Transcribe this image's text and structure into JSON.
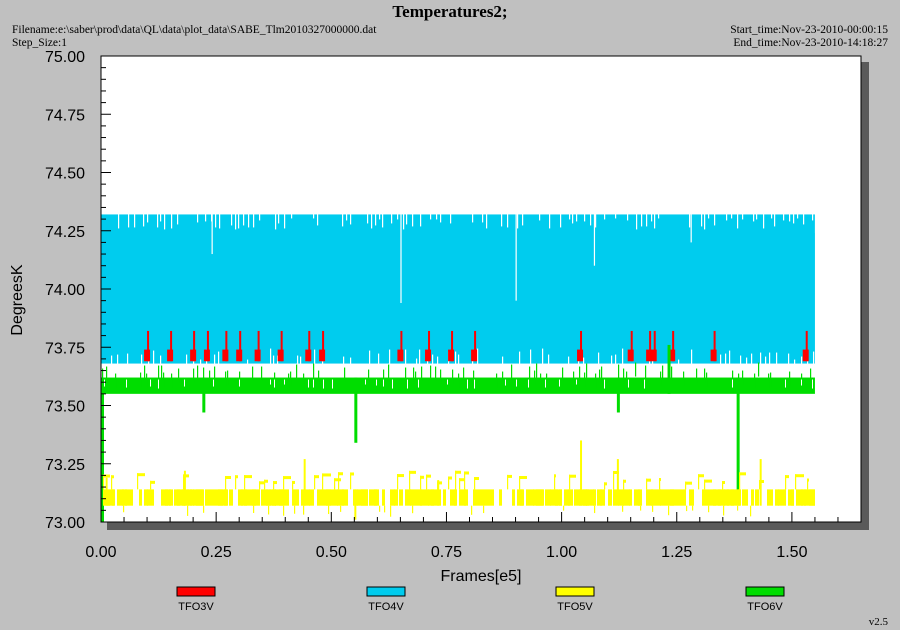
{
  "header": {
    "title": "Temperatures2;",
    "filename": "Filename:e:\\saber\\prod\\data\\QL\\data\\plot_data\\SABE_Tlm2010327000000.dat",
    "step_size": "Step_Size:1",
    "start_time": "Start_time:Nov-23-2010-00:00:15",
    "end_time": "End_time:Nov-23-2010-14:18:27",
    "version": "v2.5"
  },
  "colors": {
    "page_background": "#c0c0c0",
    "plot_background": "#ffffff"
  },
  "chart_data": {
    "type": "line",
    "title": "Temperatures2;",
    "xlabel": "Frames[e5]",
    "ylabel": "DegreesK",
    "xlim": [
      0.0,
      1.65
    ],
    "ylim": [
      73.0,
      75.0
    ],
    "x_ticks": [
      "0.00",
      "0.25",
      "0.50",
      "0.75",
      "1.00",
      "1.25",
      "1.50"
    ],
    "y_ticks": [
      "73.00",
      "73.25",
      "73.50",
      "73.75",
      "74.00",
      "74.25",
      "74.50",
      "74.75",
      "75.00"
    ],
    "x_tick_values": [
      0.0,
      0.25,
      0.5,
      0.75,
      1.0,
      1.25,
      1.5
    ],
    "y_tick_values": [
      73.0,
      73.25,
      73.5,
      73.75,
      74.0,
      74.25,
      74.5,
      74.75,
      75.0
    ],
    "legend_position": "bottom",
    "grid": false,
    "series": [
      {
        "name": "TFO3V",
        "color": "#ff0000",
        "x_range": [
          0.0,
          1.55
        ],
        "baseline": 73.69,
        "upper": 73.74,
        "spike_high": 73.82,
        "spike_x": [
          0.1,
          0.15,
          0.2,
          0.23,
          0.27,
          0.3,
          0.34,
          0.39,
          0.45,
          0.48,
          0.65,
          0.71,
          0.76,
          0.81,
          1.04,
          1.15,
          1.19,
          1.2,
          1.24,
          1.33,
          1.53
        ]
      },
      {
        "name": "TFO4V",
        "color": "#00ccee",
        "x_range": [
          0.0,
          1.55
        ],
        "low": 73.68,
        "high": 74.32,
        "dips": [
          {
            "x": 0.24,
            "y": 74.15
          },
          {
            "x": 0.65,
            "y": 73.94
          },
          {
            "x": 0.9,
            "y": 73.95
          },
          {
            "x": 1.07,
            "y": 74.1
          },
          {
            "x": 1.28,
            "y": 74.2
          },
          {
            "x": 1.55,
            "y": 74.24
          }
        ]
      },
      {
        "name": "TFO5V",
        "color": "#ffff00",
        "x_range": [
          0.0,
          1.55
        ],
        "low": 73.07,
        "high": 73.14,
        "spikes": [
          {
            "x": 0.01,
            "y": 73.19
          },
          {
            "x": 0.18,
            "y": 73.22
          },
          {
            "x": 0.44,
            "y": 73.27
          },
          {
            "x": 0.55,
            "y": 73.01
          },
          {
            "x": 0.73,
            "y": 73.18
          },
          {
            "x": 1.04,
            "y": 73.35
          },
          {
            "x": 1.12,
            "y": 73.27
          },
          {
            "x": 1.43,
            "y": 73.27
          }
        ]
      },
      {
        "name": "TFO6V",
        "color": "#00dd00",
        "x_range": [
          0.0,
          1.55
        ],
        "low": 73.55,
        "high": 73.62,
        "spikes": [
          {
            "x": 0.22,
            "y": 73.47
          },
          {
            "x": 0.55,
            "y": 73.34
          },
          {
            "x": 1.12,
            "y": 73.47
          },
          {
            "x": 1.23,
            "y": 73.76
          },
          {
            "x": 1.38,
            "y": 73.13
          }
        ]
      }
    ]
  }
}
